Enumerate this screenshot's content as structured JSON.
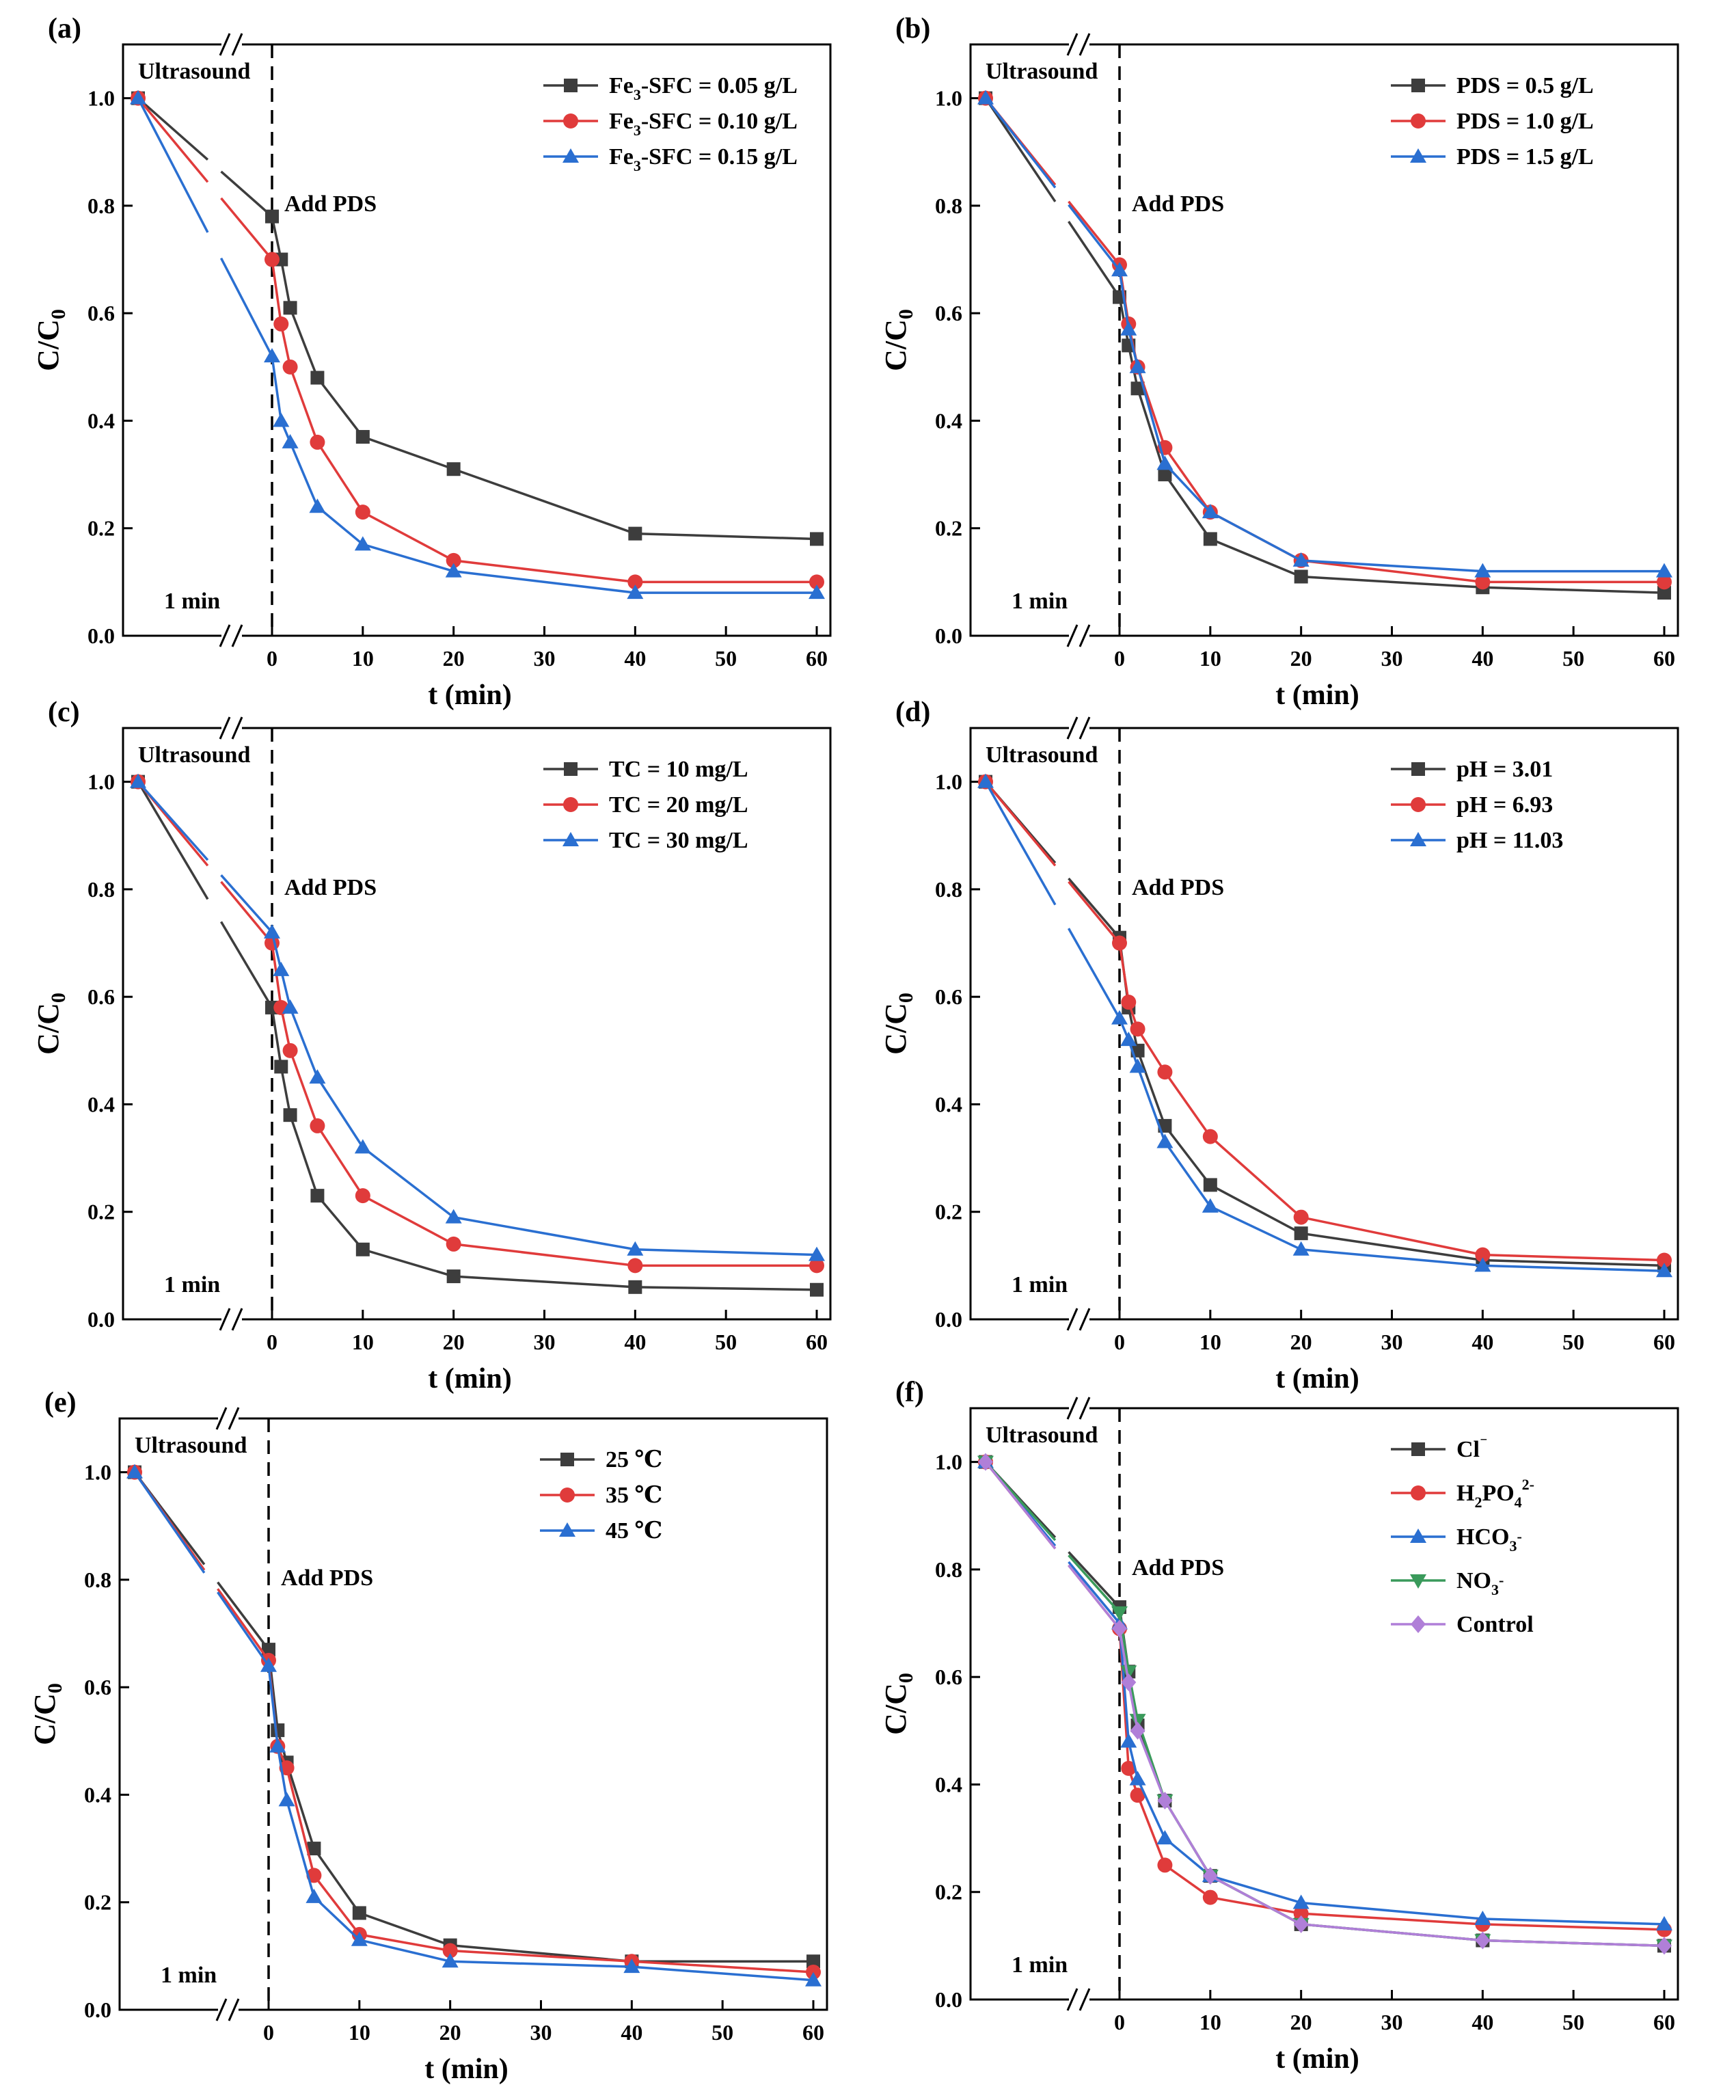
{
  "figure": {
    "colors": {
      "axis": "#000000",
      "series": [
        "#3d3d3d",
        "#e03b3b",
        "#2a6fd1",
        "#3a9a5b",
        "#b07fd8"
      ]
    }
  },
  "chart_data": [
    {
      "panel": "(a)",
      "type": "line",
      "xlabel": "t (min)",
      "ylabel": "C/C0",
      "ylabel_main": "C/C",
      "ylabel_sub": "0",
      "ylim": [
        0,
        1.1
      ],
      "xlim": [
        0,
        60
      ],
      "xticks": [
        "0",
        "10",
        "20",
        "30",
        "40",
        "50",
        "60"
      ],
      "yticks": [
        "0.0",
        "0.2",
        "0.4",
        "0.6",
        "0.8",
        "1.0"
      ],
      "broken_axis": true,
      "annotations": {
        "ultrasound": "Ultrasound",
        "add_pds": "Add PDS",
        "one_min": "1 min"
      },
      "legend_position": "top-right",
      "x": [
        0,
        1,
        2,
        5,
        10,
        20,
        40,
        60
      ],
      "series": [
        {
          "name": "Fe3-SFC = 0.05 g/L",
          "label_parts": [
            "Fe",
            "3",
            "-SFC = 0.05 g/L"
          ],
          "marker": "square",
          "color": "#3d3d3d",
          "start": 1.0,
          "values": [
            0.78,
            0.7,
            0.61,
            0.48,
            0.37,
            0.31,
            0.19,
            0.18
          ]
        },
        {
          "name": "Fe3-SFC = 0.10 g/L",
          "label_parts": [
            "Fe",
            "3",
            "-SFC = 0.10 g/L"
          ],
          "marker": "circle",
          "color": "#e03b3b",
          "start": 1.0,
          "values": [
            0.7,
            0.58,
            0.5,
            0.36,
            0.23,
            0.14,
            0.1,
            0.1
          ]
        },
        {
          "name": "Fe3-SFC = 0.15 g/L",
          "label_parts": [
            "Fe",
            "3",
            "-SFC = 0.15 g/L"
          ],
          "marker": "triangle",
          "color": "#2a6fd1",
          "start": 1.0,
          "values": [
            0.52,
            0.4,
            0.36,
            0.24,
            0.17,
            0.12,
            0.08,
            0.08
          ]
        }
      ]
    },
    {
      "panel": "(b)",
      "type": "line",
      "xlabel": "t (min)",
      "ylabel": "C/C0",
      "ylabel_main": "C/C",
      "ylabel_sub": "0",
      "ylim": [
        0,
        1.1
      ],
      "xlim": [
        0,
        60
      ],
      "xticks": [
        "0",
        "10",
        "20",
        "30",
        "40",
        "50",
        "60"
      ],
      "yticks": [
        "0.0",
        "0.2",
        "0.4",
        "0.6",
        "0.8",
        "1.0"
      ],
      "broken_axis": true,
      "annotations": {
        "ultrasound": "Ultrasound",
        "add_pds": "Add PDS",
        "one_min": "1 min"
      },
      "legend_position": "top-right",
      "x": [
        0,
        1,
        2,
        5,
        10,
        20,
        40,
        60
      ],
      "series": [
        {
          "name": "PDS = 0.5 g/L",
          "label_parts": [
            "PDS = 0.5 g/L"
          ],
          "marker": "square",
          "color": "#3d3d3d",
          "start": 1.0,
          "values": [
            0.63,
            0.54,
            0.46,
            0.3,
            0.18,
            0.11,
            0.09,
            0.08
          ]
        },
        {
          "name": "PDS = 1.0 g/L",
          "label_parts": [
            "PDS = 1.0 g/L"
          ],
          "marker": "circle",
          "color": "#e03b3b",
          "start": 1.0,
          "values": [
            0.69,
            0.58,
            0.5,
            0.35,
            0.23,
            0.14,
            0.1,
            0.1
          ]
        },
        {
          "name": "PDS = 1.5 g/L",
          "label_parts": [
            "PDS = 1.5 g/L"
          ],
          "marker": "triangle",
          "color": "#2a6fd1",
          "start": 1.0,
          "values": [
            0.68,
            0.57,
            0.5,
            0.32,
            0.23,
            0.14,
            0.12,
            0.12
          ]
        }
      ]
    },
    {
      "panel": "(c)",
      "type": "line",
      "xlabel": "t (min)",
      "ylabel": "C/C0",
      "ylabel_main": "C/C",
      "ylabel_sub": "0",
      "ylim": [
        0,
        1.1
      ],
      "xlim": [
        0,
        60
      ],
      "xticks": [
        "0",
        "10",
        "20",
        "30",
        "40",
        "50",
        "60"
      ],
      "yticks": [
        "0.0",
        "0.2",
        "0.4",
        "0.6",
        "0.8",
        "1.0"
      ],
      "broken_axis": true,
      "annotations": {
        "ultrasound": "Ultrasound",
        "add_pds": "Add PDS",
        "one_min": "1 min"
      },
      "legend_position": "top-right",
      "x": [
        0,
        1,
        2,
        5,
        10,
        20,
        40,
        60
      ],
      "series": [
        {
          "name": "TC = 10 mg/L",
          "label_parts": [
            "TC = 10 mg/L"
          ],
          "marker": "square",
          "color": "#3d3d3d",
          "start": 1.0,
          "values": [
            0.58,
            0.47,
            0.38,
            0.23,
            0.13,
            0.08,
            0.06,
            0.055
          ]
        },
        {
          "name": "TC = 20 mg/L",
          "label_parts": [
            "TC = 20 mg/L"
          ],
          "marker": "circle",
          "color": "#e03b3b",
          "start": 1.0,
          "values": [
            0.7,
            0.58,
            0.5,
            0.36,
            0.23,
            0.14,
            0.1,
            0.1
          ]
        },
        {
          "name": "TC = 30 mg/L",
          "label_parts": [
            "TC = 30 mg/L"
          ],
          "marker": "triangle",
          "color": "#2a6fd1",
          "start": 1.0,
          "values": [
            0.72,
            0.65,
            0.58,
            0.45,
            0.32,
            0.19,
            0.13,
            0.12
          ]
        }
      ]
    },
    {
      "panel": "(d)",
      "type": "line",
      "xlabel": "t (min)",
      "ylabel": "C/C0",
      "ylabel_main": "C/C",
      "ylabel_sub": "0",
      "ylim": [
        0,
        1.1
      ],
      "xlim": [
        0,
        60
      ],
      "xticks": [
        "0",
        "10",
        "20",
        "30",
        "40",
        "50",
        "60"
      ],
      "yticks": [
        "0.0",
        "0.2",
        "0.4",
        "0.6",
        "0.8",
        "1.0"
      ],
      "broken_axis": true,
      "annotations": {
        "ultrasound": "Ultrasound",
        "add_pds": "Add PDS",
        "one_min": "1 min"
      },
      "legend_position": "top-right",
      "x": [
        0,
        1,
        2,
        5,
        10,
        20,
        40,
        60
      ],
      "series": [
        {
          "name": "pH = 3.01",
          "label_parts": [
            "pH = 3.01"
          ],
          "marker": "square",
          "color": "#3d3d3d",
          "start": 1.0,
          "values": [
            0.71,
            0.58,
            0.5,
            0.36,
            0.25,
            0.16,
            0.11,
            0.1
          ]
        },
        {
          "name": "pH = 6.93",
          "label_parts": [
            "pH = 6.93"
          ],
          "marker": "circle",
          "color": "#e03b3b",
          "start": 1.0,
          "values": [
            0.7,
            0.59,
            0.54,
            0.46,
            0.34,
            0.19,
            0.12,
            0.11
          ]
        },
        {
          "name": "pH = 11.03",
          "label_parts": [
            "pH = 11.03"
          ],
          "marker": "triangle",
          "color": "#2a6fd1",
          "start": 1.0,
          "values": [
            0.56,
            0.52,
            0.47,
            0.33,
            0.21,
            0.13,
            0.1,
            0.09
          ]
        }
      ]
    },
    {
      "panel": "(e)",
      "type": "line",
      "xlabel": "t (min)",
      "ylabel": "C/C0",
      "ylabel_main": "C/C",
      "ylabel_sub": "0",
      "ylim": [
        0,
        1.1
      ],
      "xlim": [
        0,
        60
      ],
      "xticks": [
        "0",
        "10",
        "20",
        "30",
        "40",
        "50",
        "60"
      ],
      "yticks": [
        "0.0",
        "0.2",
        "0.4",
        "0.6",
        "0.8",
        "1.0"
      ],
      "broken_axis": true,
      "annotations": {
        "ultrasound": "Ultrasound",
        "add_pds": "Add PDS",
        "one_min": "1 min"
      },
      "legend_position": "top-right",
      "x": [
        0,
        1,
        2,
        5,
        10,
        20,
        40,
        60
      ],
      "series": [
        {
          "name": "25 ℃",
          "label_parts": [
            "25 ℃"
          ],
          "marker": "square",
          "color": "#3d3d3d",
          "start": 1.0,
          "values": [
            0.67,
            0.52,
            0.46,
            0.3,
            0.18,
            0.12,
            0.09,
            0.09
          ]
        },
        {
          "name": "35 ℃",
          "label_parts": [
            "35 ℃"
          ],
          "marker": "circle",
          "color": "#e03b3b",
          "start": 1.0,
          "values": [
            0.65,
            0.49,
            0.45,
            0.25,
            0.14,
            0.11,
            0.09,
            0.07
          ]
        },
        {
          "name": "45 ℃",
          "label_parts": [
            "45 ℃"
          ],
          "marker": "triangle",
          "color": "#2a6fd1",
          "start": 1.0,
          "values": [
            0.64,
            0.49,
            0.39,
            0.21,
            0.13,
            0.09,
            0.08,
            0.055
          ]
        }
      ]
    },
    {
      "panel": "(f)",
      "type": "line",
      "xlabel": "t (min)",
      "ylabel": "C/C0",
      "ylabel_main": "C/C",
      "ylabel_sub": "0",
      "ylim": [
        0,
        1.1
      ],
      "xlim": [
        0,
        60
      ],
      "xticks": [
        "0",
        "10",
        "20",
        "30",
        "40",
        "50",
        "60"
      ],
      "yticks": [
        "0.0",
        "0.2",
        "0.4",
        "0.6",
        "0.8",
        "1.0"
      ],
      "broken_axis": true,
      "annotations": {
        "ultrasound": "Ultrasound",
        "add_pds": "Add PDS",
        "one_min": "1 min"
      },
      "legend_position": "top-right",
      "x": [
        0,
        1,
        2,
        5,
        10,
        20,
        40,
        60
      ],
      "series": [
        {
          "name": "Cl⁻",
          "label_parts": [
            "Cl",
            "",
            "⁻"
          ],
          "marker": "square",
          "color": "#3d3d3d",
          "start": 1.0,
          "values": [
            0.73,
            0.61,
            0.51,
            0.37,
            0.23,
            0.14,
            0.11,
            0.1
          ]
        },
        {
          "name": "H2PO4²⁻",
          "label_parts": [
            "H",
            "2",
            "PO",
            "4",
            "2-"
          ],
          "marker": "circle",
          "color": "#e03b3b",
          "start": 1.0,
          "values": [
            0.69,
            0.43,
            0.38,
            0.25,
            0.19,
            0.16,
            0.14,
            0.13
          ]
        },
        {
          "name": "HCO3⁻",
          "label_parts": [
            "HCO",
            "3",
            "-"
          ],
          "marker": "triangle",
          "color": "#2a6fd1",
          "start": 1.0,
          "values": [
            0.7,
            0.48,
            0.41,
            0.3,
            0.23,
            0.18,
            0.15,
            0.14
          ]
        },
        {
          "name": "NO3⁻",
          "label_parts": [
            "NO",
            "3",
            "-"
          ],
          "marker": "triangle-down",
          "color": "#3a9a5b",
          "start": 1.0,
          "values": [
            0.72,
            0.61,
            0.52,
            0.37,
            0.23,
            0.14,
            0.11,
            0.1
          ]
        },
        {
          "name": "Control",
          "label_parts": [
            "Control"
          ],
          "marker": "diamond",
          "color": "#b07fd8",
          "start": 1.0,
          "values": [
            0.69,
            0.59,
            0.5,
            0.37,
            0.23,
            0.14,
            0.11,
            0.1
          ]
        }
      ]
    }
  ]
}
